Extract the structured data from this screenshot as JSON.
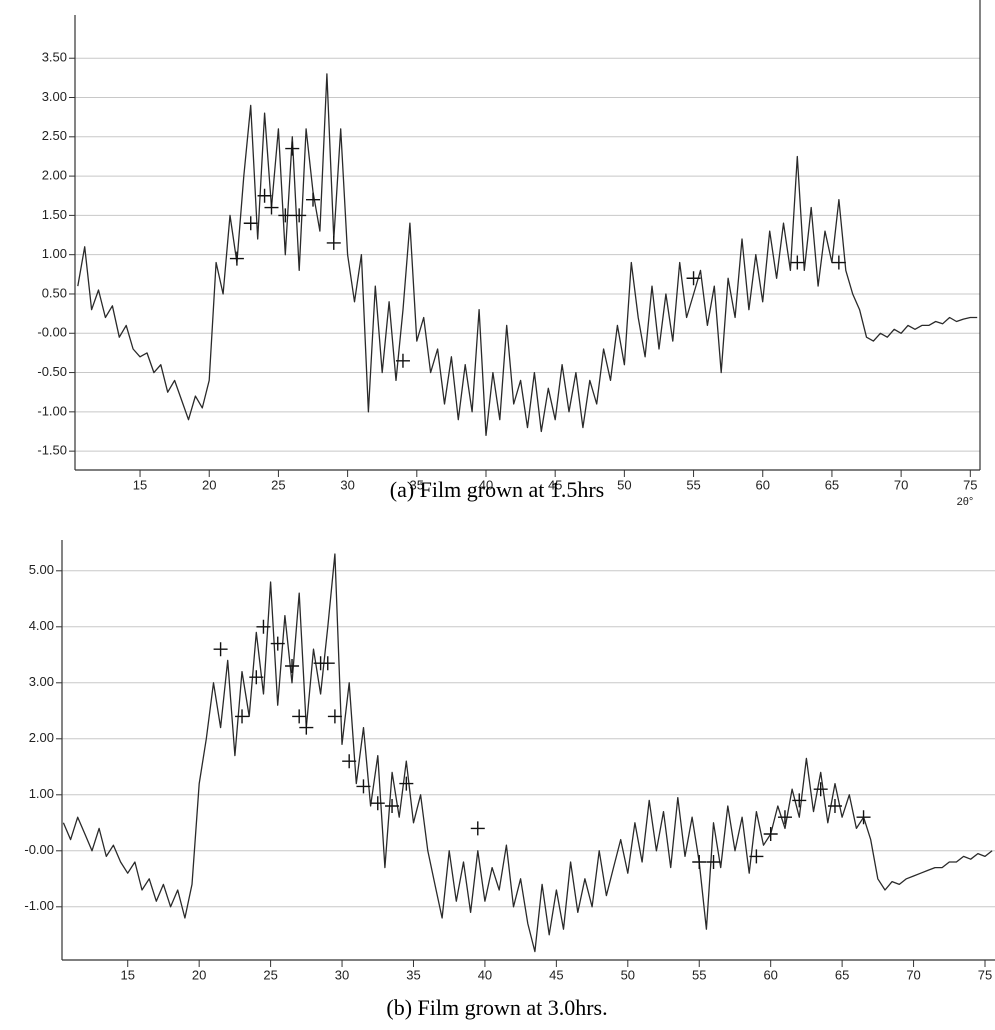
{
  "chart_data": [
    {
      "type": "line",
      "caption": "(a) Film grown at 1.5hrs",
      "x_label": "2θ°",
      "x": [
        10.5,
        11,
        11.5,
        12,
        12.5,
        13,
        13.5,
        14,
        14.5,
        15,
        15.5,
        16,
        16.5,
        17,
        17.5,
        18,
        18.5,
        19,
        19.5,
        20,
        20.5,
        21,
        21.5,
        22,
        22.5,
        23,
        23.5,
        24,
        24.5,
        25,
        25.5,
        26,
        26.5,
        27,
        27.5,
        28,
        28.5,
        29,
        29.5,
        30,
        30.5,
        31,
        31.5,
        32,
        32.5,
        33,
        33.5,
        34,
        34.5,
        35,
        35.5,
        36,
        36.5,
        37,
        37.5,
        38,
        38.5,
        39,
        39.5,
        40,
        40.5,
        41,
        41.5,
        42,
        42.5,
        43,
        43.5,
        44,
        44.5,
        45,
        45.5,
        46,
        46.5,
        47,
        47.5,
        48,
        48.5,
        49,
        49.5,
        50,
        50.5,
        51,
        51.5,
        52,
        52.5,
        53,
        53.5,
        54,
        54.5,
        55,
        55.5,
        56,
        56.5,
        57,
        57.5,
        58,
        58.5,
        59,
        59.5,
        60,
        60.5,
        61,
        61.5,
        62,
        62.5,
        63,
        63.5,
        64,
        64.5,
        65,
        65.5,
        66,
        66.5,
        67,
        67.5,
        68,
        68.5,
        69,
        69.5,
        70,
        70.5,
        71,
        71.5,
        72,
        72.5,
        73,
        73.5,
        74,
        74.5,
        75,
        75.5
      ],
      "values": [
        0.6,
        1.1,
        0.3,
        0.55,
        0.2,
        0.35,
        -0.05,
        0.1,
        -0.2,
        -0.3,
        -0.25,
        -0.5,
        -0.4,
        -0.75,
        -0.6,
        -0.85,
        -1.1,
        -0.8,
        -0.95,
        -0.6,
        0.9,
        0.5,
        1.5,
        0.9,
        2.0,
        2.9,
        1.2,
        2.8,
        1.6,
        2.6,
        1.0,
        2.5,
        0.8,
        2.6,
        1.8,
        1.3,
        3.3,
        1.2,
        2.6,
        1.0,
        0.4,
        1.0,
        -1.0,
        0.6,
        -0.5,
        0.4,
        -0.6,
        0.3,
        1.4,
        -0.1,
        0.2,
        -0.5,
        -0.2,
        -0.9,
        -0.3,
        -1.1,
        -0.4,
        -1.0,
        0.3,
        -1.3,
        -0.5,
        -1.1,
        0.1,
        -0.9,
        -0.6,
        -1.2,
        -0.5,
        -1.25,
        -0.7,
        -1.1,
        -0.4,
        -1.0,
        -0.5,
        -1.2,
        -0.6,
        -0.9,
        -0.2,
        -0.6,
        0.1,
        -0.4,
        0.9,
        0.2,
        -0.3,
        0.6,
        -0.2,
        0.5,
        -0.1,
        0.9,
        0.2,
        0.5,
        0.8,
        0.1,
        0.6,
        -0.5,
        0.7,
        0.2,
        1.2,
        0.3,
        1.0,
        0.4,
        1.3,
        0.7,
        1.4,
        0.8,
        2.25,
        0.8,
        1.6,
        0.6,
        1.3,
        0.9,
        1.7,
        0.8,
        0.5,
        0.3,
        -0.05,
        -0.1,
        0.0,
        -0.05,
        0.05,
        0.0,
        0.1,
        0.05,
        0.1,
        0.1,
        0.15,
        0.12,
        0.2,
        0.15,
        0.18,
        0.2,
        0.2
      ],
      "markers": {
        "x": [
          22,
          23,
          24,
          24.5,
          25.5,
          26,
          26.5,
          27.5,
          29,
          34,
          55,
          62.5,
          65.5
        ],
        "y": [
          0.95,
          1.4,
          1.75,
          1.6,
          1.5,
          2.35,
          1.5,
          1.7,
          1.15,
          -0.35,
          0.7,
          0.9,
          0.9
        ]
      },
      "color": "#2a2a2a",
      "xlim": [
        10.3,
        75.7
      ],
      "xticks": [
        15,
        20,
        25,
        30,
        35,
        40,
        45,
        50,
        55,
        60,
        65,
        70,
        75
      ],
      "ylim": [
        -1.74,
        4.05
      ],
      "yticks": [
        {
          "value": 3.5,
          "label": "3.50"
        },
        {
          "value": 3,
          "label": "3.00"
        },
        {
          "value": 2.5,
          "label": "2.50"
        },
        {
          "value": 2,
          "label": "2.00"
        },
        {
          "value": 1.5,
          "label": "1.50"
        },
        {
          "value": 1,
          "label": "1.00"
        },
        {
          "value": 0.5,
          "label": "0.50"
        },
        {
          "value": 0,
          "label": "-0.00"
        },
        {
          "value": -0.5,
          "label": "-0.50"
        },
        {
          "value": -1,
          "label": "-1.00"
        },
        {
          "value": -1.5,
          "label": "-1.50"
        }
      ],
      "grid": true
    },
    {
      "type": "line",
      "caption": "(b) Film grown at 3.0hrs.",
      "x": [
        10.5,
        11,
        11.5,
        12,
        12.5,
        13,
        13.5,
        14,
        14.5,
        15,
        15.5,
        16,
        16.5,
        17,
        17.5,
        18,
        18.5,
        19,
        19.5,
        20,
        20.5,
        21,
        21.5,
        22,
        22.5,
        23,
        23.5,
        24,
        24.5,
        25,
        25.5,
        26,
        26.5,
        27,
        27.5,
        28,
        28.5,
        29,
        29.5,
        30,
        30.5,
        31,
        31.5,
        32,
        32.5,
        33,
        33.5,
        34,
        34.5,
        35,
        35.5,
        36,
        36.5,
        37,
        37.5,
        38,
        38.5,
        39,
        39.5,
        40,
        40.5,
        41,
        41.5,
        42,
        42.5,
        43,
        43.5,
        44,
        44.5,
        45,
        45.5,
        46,
        46.5,
        47,
        47.5,
        48,
        48.5,
        49,
        49.5,
        50,
        50.5,
        51,
        51.5,
        52,
        52.5,
        53,
        53.5,
        54,
        54.5,
        55,
        55.5,
        56,
        56.5,
        57,
        57.5,
        58,
        58.5,
        59,
        59.5,
        60,
        60.5,
        61,
        61.5,
        62,
        62.5,
        63,
        63.5,
        64,
        64.5,
        65,
        65.5,
        66,
        66.5,
        67,
        67.5,
        68,
        68.5,
        69,
        69.5,
        70,
        70.5,
        71,
        71.5,
        72,
        72.5,
        73,
        73.5,
        74,
        74.5,
        75,
        75.5
      ],
      "values": [
        0.5,
        0.2,
        0.6,
        0.3,
        0.0,
        0.4,
        -0.1,
        0.1,
        -0.2,
        -0.4,
        -0.2,
        -0.7,
        -0.5,
        -0.9,
        -0.6,
        -1.0,
        -0.7,
        -1.2,
        -0.6,
        1.2,
        2.0,
        3.0,
        2.2,
        3.4,
        1.7,
        3.2,
        2.4,
        3.9,
        2.8,
        4.8,
        2.6,
        4.2,
        3.0,
        4.6,
        2.2,
        3.6,
        2.8,
        4.0,
        5.3,
        1.9,
        3.0,
        1.2,
        2.2,
        0.8,
        1.7,
        -0.3,
        1.4,
        0.6,
        1.6,
        0.5,
        1.0,
        0.0,
        -0.6,
        -1.2,
        0.0,
        -0.9,
        -0.2,
        -1.1,
        0.0,
        -0.9,
        -0.3,
        -0.7,
        0.1,
        -1.0,
        -0.5,
        -1.3,
        -1.8,
        -0.6,
        -1.5,
        -0.7,
        -1.4,
        -0.2,
        -1.1,
        -0.5,
        -1.0,
        0.0,
        -0.8,
        -0.3,
        0.2,
        -0.4,
        0.5,
        -0.2,
        0.9,
        0.0,
        0.7,
        -0.3,
        0.95,
        -0.1,
        0.6,
        -0.2,
        -1.4,
        0.5,
        -0.3,
        0.8,
        0.0,
        0.6,
        -0.4,
        0.7,
        0.1,
        0.3,
        0.8,
        0.4,
        1.1,
        0.6,
        1.65,
        0.7,
        1.4,
        0.5,
        1.2,
        0.6,
        1.0,
        0.4,
        0.6,
        0.2,
        -0.5,
        -0.7,
        -0.55,
        -0.6,
        -0.5,
        -0.45,
        -0.4,
        -0.35,
        -0.3,
        -0.3,
        -0.2,
        -0.2,
        -0.1,
        -0.15,
        -0.05,
        -0.1,
        0.0
      ],
      "markers": {
        "x": [
          21.5,
          23,
          24,
          24.5,
          25.5,
          26.5,
          27,
          27.5,
          28.5,
          29,
          29.5,
          30.5,
          31.5,
          32.5,
          33.5,
          34.5,
          39.5,
          55,
          56,
          59,
          60,
          61,
          62,
          63.5,
          64.5,
          66.5
        ],
        "y": [
          3.6,
          2.4,
          3.1,
          4.0,
          3.7,
          3.3,
          2.4,
          2.2,
          3.35,
          3.35,
          2.4,
          1.6,
          1.15,
          0.85,
          0.8,
          1.2,
          0.4,
          -0.2,
          -0.2,
          -0.1,
          0.3,
          0.6,
          0.9,
          1.1,
          0.8,
          0.6
        ]
      },
      "color": "#2a2a2a",
      "xlim": [
        10.4,
        75.7
      ],
      "xticks": [
        15,
        20,
        25,
        30,
        35,
        40,
        45,
        50,
        55,
        60,
        65,
        70,
        75
      ],
      "ylim": [
        -1.95,
        5.55
      ],
      "yticks": [
        {
          "value": 5,
          "label": "5.00"
        },
        {
          "value": 4,
          "label": "4.00"
        },
        {
          "value": 3,
          "label": "3.00"
        },
        {
          "value": 2,
          "label": "2.00"
        },
        {
          "value": 1,
          "label": "1.00"
        },
        {
          "value": 0,
          "label": "-0.00"
        },
        {
          "value": -1,
          "label": "-1.00"
        }
      ],
      "grid": true
    }
  ]
}
